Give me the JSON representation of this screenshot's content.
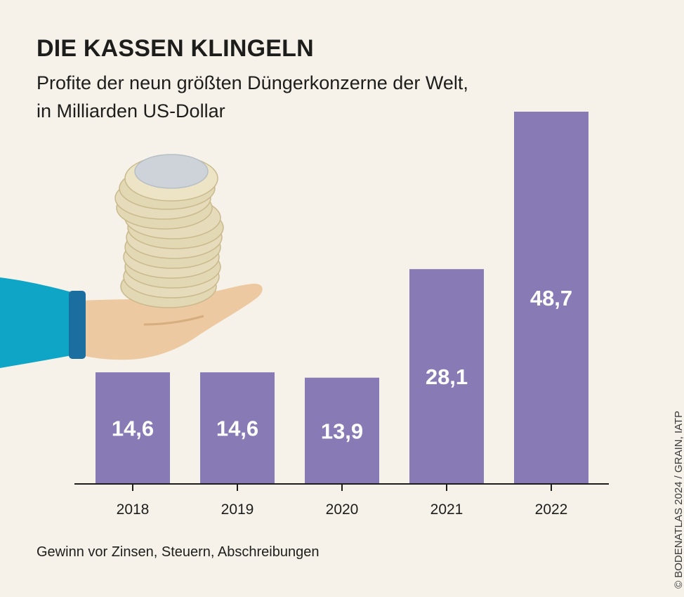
{
  "title": "DIE KASSEN KLINGELN",
  "subtitle_line1": "Profite der neun größten Düngerkonzerne der Welt,",
  "subtitle_line2": "in Milliarden US-Dollar",
  "footnote": "Gewinn vor Zinsen, Steuern, Abschreibungen",
  "credit": "© BODENATLAS 2024 / GRAIN, IATP",
  "colors": {
    "bar": "#887bb5",
    "background": "#f6f2ea",
    "sleeve": "#0ea5c6",
    "cuff": "#1a6fa0",
    "hand": "#ecc9a0",
    "coin_edge": "#e3d8b4",
    "coin_face": "#cdd3d9"
  },
  "illustration": {
    "name": "hand-with-coin-stack"
  },
  "chart_data": {
    "type": "bar",
    "categories": [
      "2018",
      "2019",
      "2020",
      "2021",
      "2022"
    ],
    "values": [
      14.6,
      14.6,
      13.9,
      28.1,
      48.7
    ],
    "value_labels": [
      "14,6",
      "14,6",
      "13,9",
      "28,1",
      "48,7"
    ],
    "title": "DIE KASSEN KLINGELN",
    "subtitle": "Profite der neun größten Düngerkonzerne der Welt, in Milliarden US-Dollar",
    "xlabel": "",
    "ylabel": "",
    "ylim": [
      0,
      48.7
    ],
    "grid": false,
    "legend": "none"
  }
}
